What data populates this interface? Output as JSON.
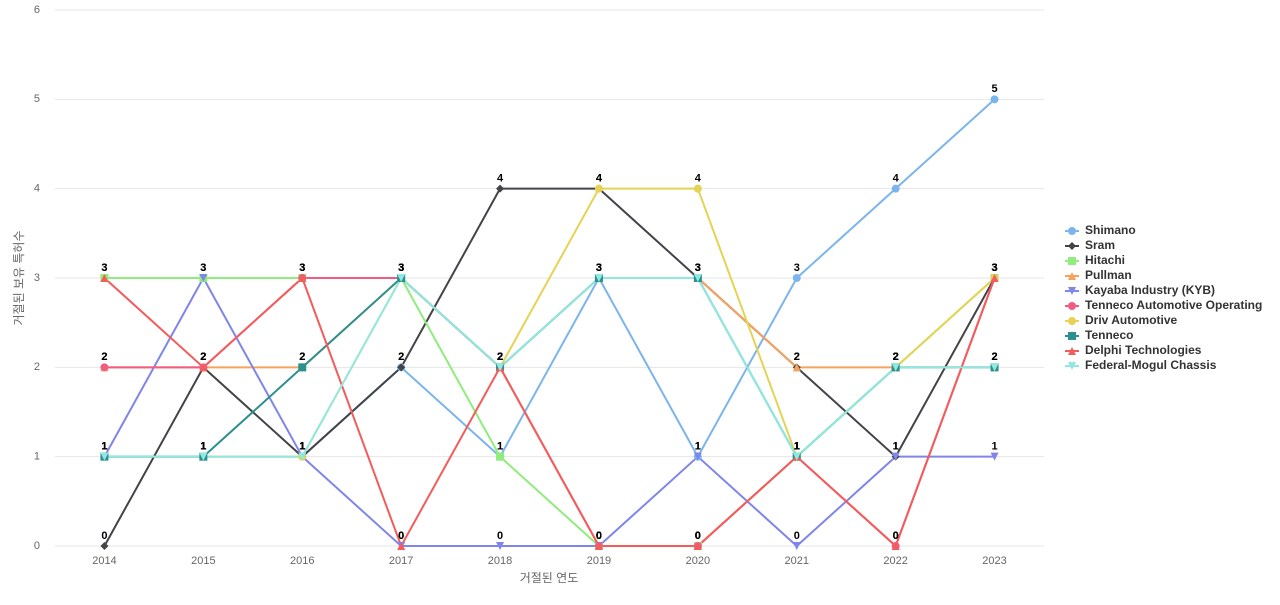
{
  "chart_data": {
    "type": "line",
    "x_label": "거절된 연도",
    "y_label": "거절된 보유 특허수",
    "categories": [
      "2014",
      "2015",
      "2016",
      "2017",
      "2018",
      "2019",
      "2020",
      "2021",
      "2022",
      "2023"
    ],
    "ylim": [
      0,
      6
    ],
    "yticks": [
      0,
      1,
      2,
      3,
      4,
      5,
      6
    ],
    "grid": true,
    "legend": "right",
    "series": [
      {
        "name": "Shimano",
        "color": "#7cb5ec",
        "marker": "circle",
        "values": [
          1,
          1,
          1,
          2,
          1,
          3,
          1,
          3,
          4,
          5
        ]
      },
      {
        "name": "Sram",
        "color": "#434348",
        "marker": "diamond",
        "values": [
          0,
          2,
          1,
          2,
          4,
          4,
          3,
          2,
          1,
          3
        ]
      },
      {
        "name": "Hitachi",
        "color": "#90ed7d",
        "marker": "square",
        "values": [
          3,
          3,
          3,
          3,
          1,
          0,
          0,
          1,
          2,
          3
        ]
      },
      {
        "name": "Pullman",
        "color": "#f7a35c",
        "marker": "triangle",
        "values": [
          2,
          2,
          2,
          3,
          2,
          3,
          3,
          2,
          2,
          2
        ]
      },
      {
        "name": "Kayaba Industry (KYB)",
        "color": "#8085e9",
        "marker": "triangle-down",
        "values": [
          1,
          3,
          1,
          0,
          0,
          0,
          1,
          0,
          1,
          1
        ]
      },
      {
        "name": "Tenneco Automotive Operating",
        "color": "#f15c80",
        "marker": "circle",
        "values": [
          2,
          2,
          3,
          3,
          2,
          0,
          0,
          1,
          0,
          3
        ]
      },
      {
        "name": "Driv Automotive",
        "color": "#e4d354",
        "marker": "circle",
        "values": [
          1,
          1,
          1,
          3,
          2,
          4,
          4,
          1,
          2,
          3
        ]
      },
      {
        "name": "Tenneco",
        "color": "#2b908f",
        "marker": "square",
        "values": [
          1,
          1,
          2,
          3,
          2,
          3,
          3,
          1,
          2,
          2
        ]
      },
      {
        "name": "Delphi Technologies",
        "color": "#f45b5b",
        "marker": "triangle",
        "values": [
          3,
          2,
          3,
          0,
          2,
          0,
          0,
          1,
          0,
          3
        ]
      },
      {
        "name": "Federal-Mogul Chassis",
        "color": "#91e8e1",
        "marker": "triangle-down",
        "values": [
          1,
          1,
          1,
          3,
          2,
          3,
          3,
          1,
          2,
          2
        ]
      }
    ]
  }
}
